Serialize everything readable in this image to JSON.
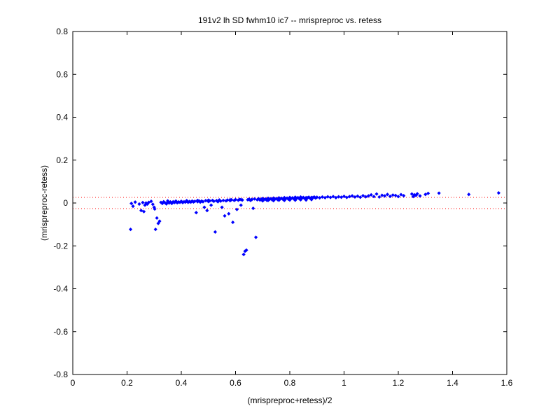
{
  "chart_data": {
    "type": "scatter",
    "title": "191v2 lh SD fwhm10 ic7 -- mrispreproc vs. retess",
    "xlabel": "(mrispreproc+retess)/2",
    "ylabel": "(mrispreproc-retess)",
    "xlim": [
      0,
      1.6
    ],
    "ylim": [
      -0.8,
      0.8
    ],
    "xticks": [
      "0",
      "0.2",
      "0.4",
      "0.6",
      "0.8",
      "1",
      "1.2",
      "1.4",
      "1.6"
    ],
    "yticks": [
      "-0.8",
      "-0.6",
      "-0.4",
      "-0.2",
      "0",
      "0.2",
      "0.4",
      "0.6",
      "0.8"
    ],
    "grid": false,
    "marker_color": "#0000ff",
    "reference_lines": [
      {
        "y": 0.026,
        "style": "dotted",
        "color": "#ff0000"
      },
      {
        "y": -0.026,
        "style": "dotted",
        "color": "#ff0000"
      }
    ],
    "points": [
      [
        0.213,
        -0.123
      ],
      [
        0.216,
        -0.002
      ],
      [
        0.222,
        -0.015
      ],
      [
        0.23,
        0.004
      ],
      [
        0.245,
        -0.005
      ],
      [
        0.252,
        -0.035
      ],
      [
        0.258,
        0.002
      ],
      [
        0.262,
        -0.04
      ],
      [
        0.266,
        -0.01
      ],
      [
        0.27,
        0.0
      ],
      [
        0.275,
        -0.005
      ],
      [
        0.28,
        0.003
      ],
      [
        0.289,
        0.008
      ],
      [
        0.295,
        -0.006
      ],
      [
        0.3,
        -0.02
      ],
      [
        0.305,
        -0.123
      ],
      [
        0.31,
        -0.07
      ],
      [
        0.315,
        -0.095
      ],
      [
        0.32,
        -0.085
      ],
      [
        0.302,
        -0.028
      ],
      [
        0.325,
        0.003
      ],
      [
        0.33,
        -0.002
      ],
      [
        0.335,
        0.006
      ],
      [
        0.34,
        0.001
      ],
      [
        0.345,
        -0.004
      ],
      [
        0.35,
        0.004
      ],
      [
        0.355,
        0.0
      ],
      [
        0.36,
        0.005
      ],
      [
        0.365,
        -0.002
      ],
      [
        0.37,
        0.006
      ],
      [
        0.375,
        0.002
      ],
      [
        0.38,
        0.007
      ],
      [
        0.385,
        0.001
      ],
      [
        0.39,
        0.005
      ],
      [
        0.395,
        0.003
      ],
      [
        0.4,
        0.008
      ],
      [
        0.405,
        0.002
      ],
      [
        0.41,
        0.006
      ],
      [
        0.415,
        0.004
      ],
      [
        0.42,
        0.008
      ],
      [
        0.425,
        0.003
      ],
      [
        0.43,
        0.007
      ],
      [
        0.435,
        0.004
      ],
      [
        0.44,
        0.009
      ],
      [
        0.445,
        0.005
      ],
      [
        0.45,
        0.008
      ],
      [
        0.455,
        -0.045
      ],
      [
        0.46,
        0.006
      ],
      [
        0.465,
        0.01
      ],
      [
        0.47,
        0.004
      ],
      [
        0.475,
        0.009
      ],
      [
        0.48,
        0.006
      ],
      [
        0.485,
        -0.02
      ],
      [
        0.49,
        0.011
      ],
      [
        0.495,
        -0.035
      ],
      [
        0.5,
        0.007
      ],
      [
        0.505,
        0.01
      ],
      [
        0.51,
        -0.01
      ],
      [
        0.515,
        0.012
      ],
      [
        0.52,
        0.008
      ],
      [
        0.525,
        -0.135
      ],
      [
        0.53,
        0.011
      ],
      [
        0.535,
        0.006
      ],
      [
        0.54,
        0.013
      ],
      [
        0.545,
        0.009
      ],
      [
        0.55,
        -0.02
      ],
      [
        0.555,
        0.012
      ],
      [
        0.56,
        -0.06
      ],
      [
        0.565,
        0.01
      ],
      [
        0.57,
        0.014
      ],
      [
        0.575,
        -0.05
      ],
      [
        0.58,
        0.011
      ],
      [
        0.585,
        0.015
      ],
      [
        0.59,
        -0.09
      ],
      [
        0.595,
        0.012
      ],
      [
        0.6,
        0.016
      ],
      [
        0.605,
        -0.03
      ],
      [
        0.61,
        0.013
      ],
      [
        0.615,
        0.017
      ],
      [
        0.62,
        -0.01
      ],
      [
        0.625,
        0.014
      ],
      [
        0.63,
        -0.24
      ],
      [
        0.635,
        -0.225
      ],
      [
        0.64,
        -0.22
      ],
      [
        0.645,
        0.015
      ],
      [
        0.65,
        0.018
      ],
      [
        0.655,
        0.012
      ],
      [
        0.66,
        0.016
      ],
      [
        0.665,
        -0.025
      ],
      [
        0.67,
        0.019
      ],
      [
        0.675,
        -0.16
      ],
      [
        0.68,
        0.015
      ],
      [
        0.685,
        0.02
      ],
      [
        0.69,
        0.014
      ],
      [
        0.695,
        0.018
      ],
      [
        0.7,
        0.021
      ],
      [
        0.705,
        0.016
      ],
      [
        0.71,
        0.019
      ],
      [
        0.715,
        0.013
      ],
      [
        0.72,
        0.022
      ],
      [
        0.725,
        0.017
      ],
      [
        0.73,
        0.02
      ],
      [
        0.735,
        0.015
      ],
      [
        0.74,
        0.023
      ],
      [
        0.745,
        0.018
      ],
      [
        0.75,
        0.021
      ],
      [
        0.755,
        0.016
      ],
      [
        0.76,
        0.024
      ],
      [
        0.765,
        0.019
      ],
      [
        0.77,
        0.022
      ],
      [
        0.775,
        0.017
      ],
      [
        0.78,
        0.025
      ],
      [
        0.785,
        0.02
      ],
      [
        0.79,
        0.023
      ],
      [
        0.795,
        0.018
      ],
      [
        0.8,
        0.026
      ],
      [
        0.805,
        0.021
      ],
      [
        0.81,
        0.024
      ],
      [
        0.815,
        0.019
      ],
      [
        0.82,
        0.027
      ],
      [
        0.825,
        0.022
      ],
      [
        0.83,
        0.025
      ],
      [
        0.835,
        0.02
      ],
      [
        0.84,
        0.028
      ],
      [
        0.845,
        0.023
      ],
      [
        0.85,
        0.026
      ],
      [
        0.855,
        0.021
      ],
      [
        0.86,
        0.025
      ],
      [
        0.865,
        0.024
      ],
      [
        0.87,
        0.027
      ],
      [
        0.875,
        0.022
      ],
      [
        0.88,
        0.026
      ],
      [
        0.885,
        0.025
      ],
      [
        0.89,
        0.028
      ],
      [
        0.895,
        0.023
      ],
      [
        0.9,
        0.027
      ],
      [
        0.91,
        0.024
      ],
      [
        0.92,
        0.028
      ],
      [
        0.93,
        0.025
      ],
      [
        0.94,
        0.029
      ],
      [
        0.95,
        0.026
      ],
      [
        0.96,
        0.03
      ],
      [
        0.97,
        0.025
      ],
      [
        0.98,
        0.029
      ],
      [
        0.99,
        0.027
      ],
      [
        1.0,
        0.031
      ],
      [
        1.01,
        0.026
      ],
      [
        1.02,
        0.03
      ],
      [
        1.03,
        0.033
      ],
      [
        1.04,
        0.028
      ],
      [
        1.05,
        0.032
      ],
      [
        1.06,
        0.027
      ],
      [
        1.07,
        0.034
      ],
      [
        1.08,
        0.029
      ],
      [
        1.09,
        0.033
      ],
      [
        1.1,
        0.038
      ],
      [
        1.11,
        0.03
      ],
      [
        1.12,
        0.042
      ],
      [
        1.13,
        0.028
      ],
      [
        1.14,
        0.036
      ],
      [
        1.15,
        0.033
      ],
      [
        1.16,
        0.04
      ],
      [
        1.17,
        0.031
      ],
      [
        1.18,
        0.037
      ],
      [
        1.19,
        0.035
      ],
      [
        1.2,
        0.03
      ],
      [
        1.21,
        0.039
      ],
      [
        1.22,
        0.034
      ],
      [
        1.25,
        0.042
      ],
      [
        1.255,
        0.03
      ],
      [
        1.26,
        0.038
      ],
      [
        1.265,
        0.035
      ],
      [
        1.27,
        0.043
      ],
      [
        1.28,
        0.033
      ],
      [
        1.3,
        0.04
      ],
      [
        1.31,
        0.045
      ],
      [
        1.35,
        0.046
      ],
      [
        1.46,
        0.04
      ],
      [
        1.57,
        0.047
      ],
      [
        0.7,
        0.01
      ],
      [
        0.72,
        0.012
      ],
      [
        0.74,
        0.011
      ],
      [
        0.76,
        0.013
      ],
      [
        0.78,
        0.012
      ],
      [
        0.8,
        0.014
      ],
      [
        0.82,
        0.013
      ],
      [
        0.84,
        0.015
      ],
      [
        0.86,
        0.014
      ],
      [
        0.88,
        0.016
      ],
      [
        0.35,
        0.01
      ],
      [
        0.38,
        0.009
      ],
      [
        0.42,
        0.011
      ],
      [
        0.46,
        0.012
      ],
      [
        0.5,
        0.013
      ],
      [
        0.54,
        0.014
      ],
      [
        0.58,
        0.015
      ],
      [
        0.62,
        0.016
      ],
      [
        0.66,
        0.017
      ]
    ]
  }
}
